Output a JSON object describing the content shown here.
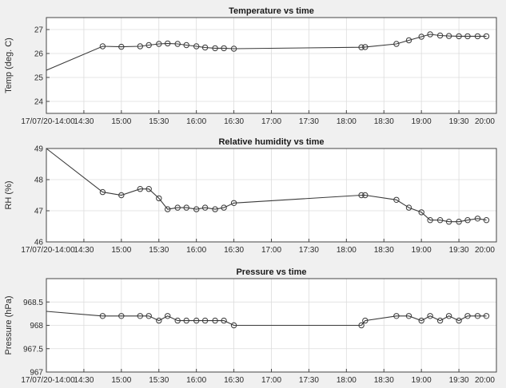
{
  "chart_data": [
    {
      "type": "line",
      "title": "Temperature vs time",
      "xlabel": "",
      "ylabel": "Temp (deg. C)",
      "ylim": [
        23.5,
        27.5
      ],
      "yticks": [
        "24",
        "25",
        "26",
        "27"
      ],
      "xlim": [
        "14:00",
        "20:00"
      ],
      "xtick_labels": [
        "17/07/20-14:00",
        "14:30",
        "15:00",
        "15:30",
        "16:00",
        "16:30",
        "17:00",
        "17:30",
        "18:00",
        "18:30",
        "19:00",
        "19:30",
        "20:00"
      ],
      "grid": true,
      "x": [
        "14:00",
        "14:45",
        "15:00",
        "15:15",
        "15:22",
        "15:30",
        "15:37",
        "15:45",
        "15:52",
        "16:00",
        "16:07",
        "16:15",
        "16:22",
        "16:30",
        "18:12",
        "18:15",
        "18:40",
        "18:50",
        "19:00",
        "19:07",
        "19:15",
        "19:22",
        "19:30",
        "19:37",
        "19:45",
        "19:52"
      ],
      "series": [
        {
          "values": [
            25.3,
            26.3,
            26.28,
            26.3,
            26.35,
            26.4,
            26.42,
            26.4,
            26.35,
            26.3,
            26.25,
            26.22,
            26.22,
            26.2,
            26.26,
            26.27,
            26.4,
            26.55,
            26.7,
            26.8,
            26.75,
            26.73,
            26.72,
            26.72,
            26.72,
            26.72
          ]
        }
      ]
    },
    {
      "type": "line",
      "title": "Relative humidity vs time",
      "xlabel": "",
      "ylabel": "RH (%)",
      "ylim": [
        46,
        49
      ],
      "yticks": [
        "46",
        "47",
        "48",
        "49"
      ],
      "xlim": [
        "14:00",
        "20:00"
      ],
      "xtick_labels": [
        "17/07/20-14:00",
        "14:30",
        "15:00",
        "15:30",
        "16:00",
        "16:30",
        "17:00",
        "17:30",
        "18:00",
        "18:30",
        "19:00",
        "19:30",
        "20:00"
      ],
      "grid": true,
      "x": [
        "14:00",
        "14:45",
        "15:00",
        "15:15",
        "15:22",
        "15:30",
        "15:37",
        "15:45",
        "15:52",
        "16:00",
        "16:07",
        "16:15",
        "16:22",
        "16:30",
        "18:12",
        "18:15",
        "18:40",
        "18:50",
        "19:00",
        "19:07",
        "19:15",
        "19:22",
        "19:30",
        "19:37",
        "19:45",
        "19:52"
      ],
      "series": [
        {
          "values": [
            49,
            47.6,
            47.5,
            47.7,
            47.7,
            47.4,
            47.05,
            47.1,
            47.1,
            47.05,
            47.1,
            47.05,
            47.1,
            47.25,
            47.5,
            47.5,
            47.35,
            47.1,
            46.95,
            46.7,
            46.7,
            46.65,
            46.65,
            46.7,
            46.75,
            46.7
          ]
        }
      ]
    },
    {
      "type": "line",
      "title": "Pressure vs time",
      "xlabel": "",
      "ylabel": "Pressure (hPa)",
      "ylim": [
        967,
        969
      ],
      "yticks": [
        "967",
        "967.5",
        "968",
        "968.5"
      ],
      "xlim": [
        "14:00",
        "20:00"
      ],
      "xtick_labels": [
        "17/07/20-14:00",
        "14:30",
        "15:00",
        "15:30",
        "16:00",
        "16:30",
        "17:00",
        "17:30",
        "18:00",
        "18:30",
        "19:00",
        "19:30",
        "20:00"
      ],
      "grid": true,
      "x": [
        "14:00",
        "14:45",
        "15:00",
        "15:15",
        "15:22",
        "15:30",
        "15:37",
        "15:45",
        "15:52",
        "16:00",
        "16:07",
        "16:15",
        "16:22",
        "16:30",
        "18:12",
        "18:15",
        "18:40",
        "18:50",
        "19:00",
        "19:07",
        "19:15",
        "19:22",
        "19:30",
        "19:37",
        "19:45",
        "19:52"
      ],
      "series": [
        {
          "values": [
            968.3,
            968.2,
            968.2,
            968.2,
            968.2,
            968.1,
            968.2,
            968.1,
            968.1,
            968.1,
            968.1,
            968.1,
            968.1,
            968.0,
            968.0,
            968.1,
            968.2,
            968.2,
            968.1,
            968.2,
            968.1,
            968.2,
            968.1,
            968.2,
            968.2,
            968.2
          ]
        }
      ]
    }
  ]
}
